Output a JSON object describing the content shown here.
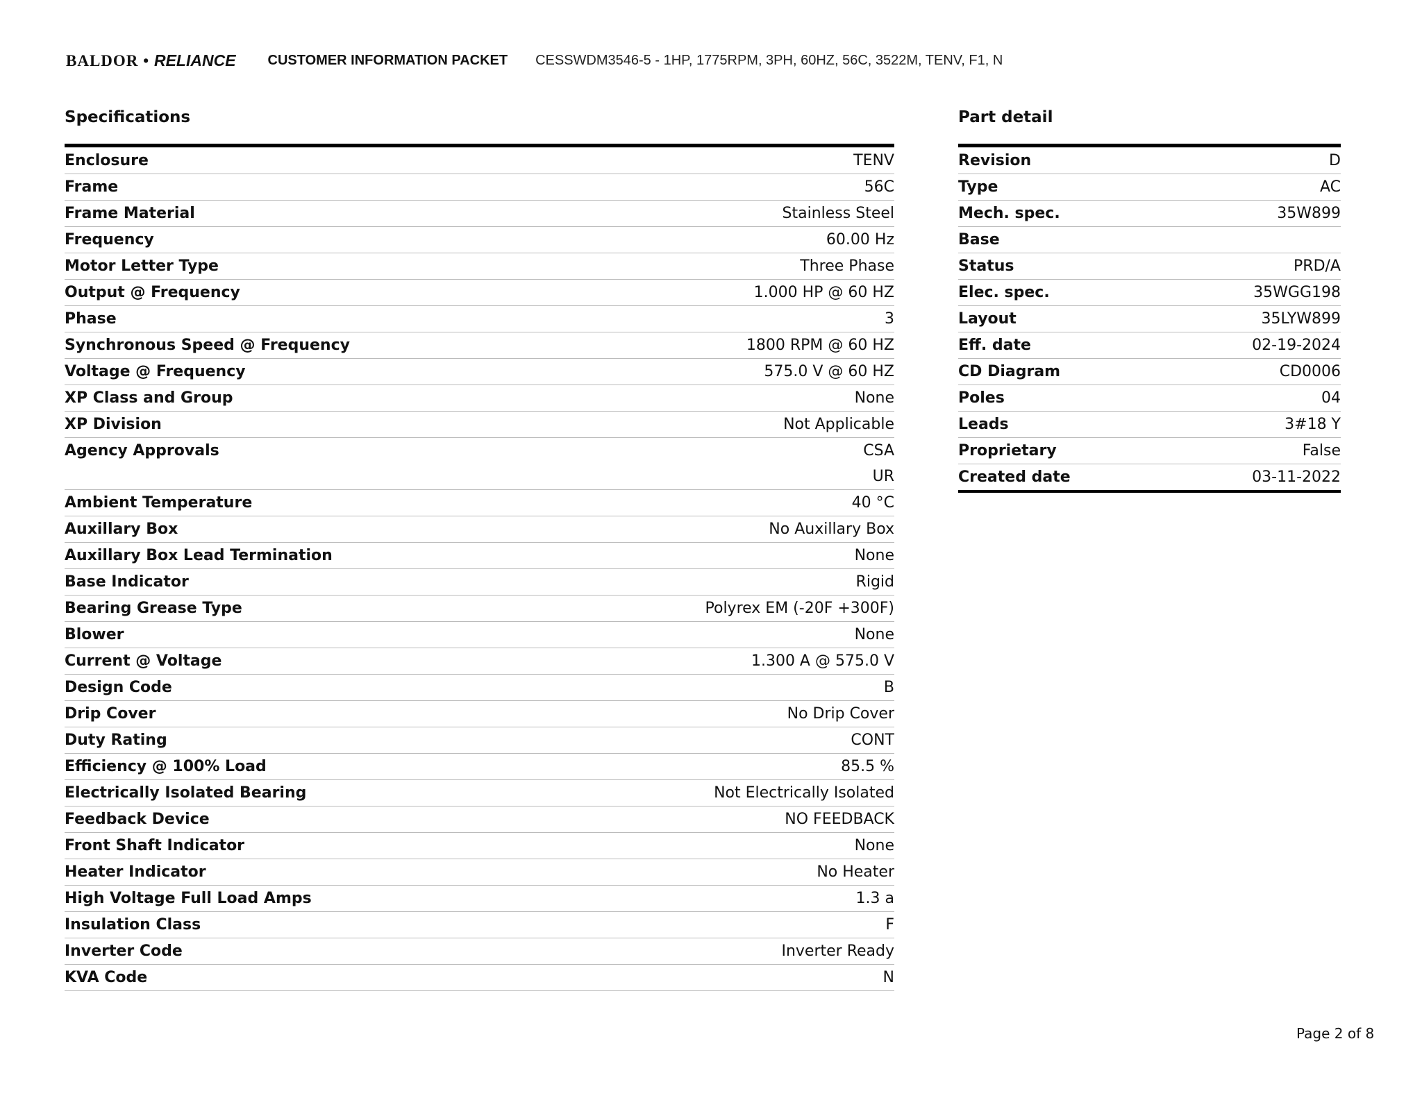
{
  "header": {
    "logo_text": "BALDOR • RELIANCE",
    "packet_title": "CUSTOMER INFORMATION PACKET",
    "description": "CESSWDM3546-5 - 1HP, 1775RPM, 3PH, 60HZ, 56C, 3522M, TENV, F1, N"
  },
  "specifications": {
    "title": "Specifications",
    "rows": [
      {
        "label": "Enclosure",
        "values": [
          "TENV"
        ]
      },
      {
        "label": "Frame",
        "values": [
          "56C"
        ]
      },
      {
        "label": "Frame Material",
        "values": [
          "Stainless Steel"
        ]
      },
      {
        "label": "Frequency",
        "values": [
          "60.00 Hz"
        ]
      },
      {
        "label": "Motor Letter Type",
        "values": [
          "Three Phase"
        ]
      },
      {
        "label": "Output @ Frequency",
        "values": [
          "1.000 HP @ 60 HZ"
        ]
      },
      {
        "label": "Phase",
        "values": [
          "3"
        ]
      },
      {
        "label": "Synchronous Speed @ Frequency",
        "values": [
          "1800 RPM @ 60 HZ"
        ]
      },
      {
        "label": "Voltage @ Frequency",
        "values": [
          "575.0 V @ 60 HZ"
        ]
      },
      {
        "label": "XP Class and Group",
        "values": [
          "None"
        ]
      },
      {
        "label": "XP Division",
        "values": [
          "Not Applicable"
        ]
      },
      {
        "label": "Agency Approvals",
        "values": [
          "CSA",
          "UR"
        ]
      },
      {
        "label": "Ambient Temperature",
        "values": [
          "40 °C"
        ]
      },
      {
        "label": "Auxillary Box",
        "values": [
          "No Auxillary Box"
        ]
      },
      {
        "label": "Auxillary Box Lead Termination",
        "values": [
          "None"
        ]
      },
      {
        "label": "Base Indicator",
        "values": [
          "Rigid"
        ]
      },
      {
        "label": "Bearing Grease Type",
        "values": [
          "Polyrex EM (-20F +300F)"
        ]
      },
      {
        "label": "Blower",
        "values": [
          "None"
        ]
      },
      {
        "label": "Current @ Voltage",
        "values": [
          "1.300 A @ 575.0 V"
        ]
      },
      {
        "label": "Design Code",
        "values": [
          "B"
        ]
      },
      {
        "label": "Drip Cover",
        "values": [
          "No Drip Cover"
        ]
      },
      {
        "label": "Duty Rating",
        "values": [
          "CONT"
        ]
      },
      {
        "label": "Efficiency @ 100% Load",
        "values": [
          "85.5 %"
        ]
      },
      {
        "label": "Electrically Isolated Bearing",
        "values": [
          "Not Electrically Isolated"
        ]
      },
      {
        "label": "Feedback Device",
        "values": [
          "NO FEEDBACK"
        ]
      },
      {
        "label": "Front Shaft Indicator",
        "values": [
          "None"
        ]
      },
      {
        "label": "Heater Indicator",
        "values": [
          "No Heater"
        ]
      },
      {
        "label": "High Voltage Full Load Amps",
        "values": [
          "1.3 a"
        ]
      },
      {
        "label": "Insulation Class",
        "values": [
          "F"
        ]
      },
      {
        "label": "Inverter Code",
        "values": [
          "Inverter Ready"
        ]
      },
      {
        "label": "KVA Code",
        "values": [
          "N"
        ]
      }
    ]
  },
  "part_detail": {
    "title": "Part detail",
    "rows": [
      {
        "label": "Revision",
        "values": [
          "D"
        ]
      },
      {
        "label": "Type",
        "values": [
          "AC"
        ]
      },
      {
        "label": "Mech. spec.",
        "values": [
          "35W899"
        ]
      },
      {
        "label": "Base",
        "values": [
          ""
        ]
      },
      {
        "label": "Status",
        "values": [
          "PRD/A"
        ]
      },
      {
        "label": "Elec. spec.",
        "values": [
          "35WGG198"
        ]
      },
      {
        "label": "Layout",
        "values": [
          "35LYW899"
        ]
      },
      {
        "label": "Eff. date",
        "values": [
          "02-19-2024"
        ]
      },
      {
        "label": "CD Diagram",
        "values": [
          "CD0006"
        ]
      },
      {
        "label": "Poles",
        "values": [
          "04"
        ]
      },
      {
        "label": "Leads",
        "values": [
          "3#18 Y"
        ]
      },
      {
        "label": "Proprietary",
        "values": [
          "False"
        ]
      },
      {
        "label": "Created date",
        "values": [
          "03-11-2022"
        ]
      }
    ]
  },
  "footer": {
    "page": "Page 2 of 8"
  }
}
